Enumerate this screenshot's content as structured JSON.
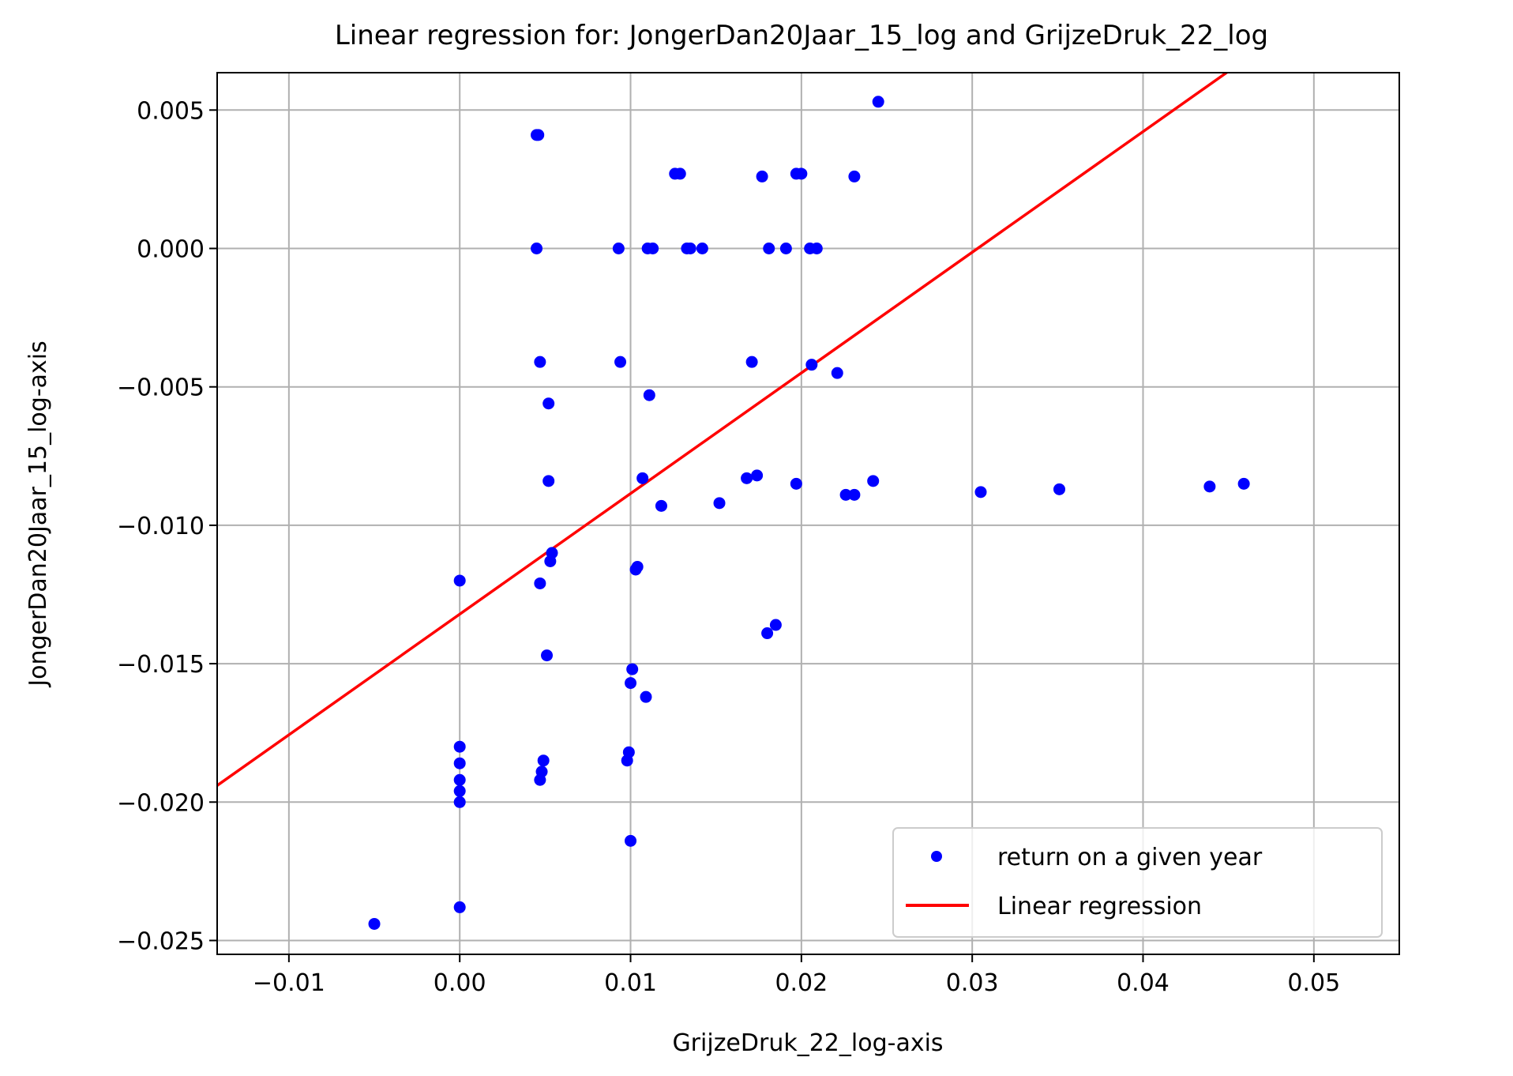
{
  "chart_data": {
    "type": "scatter",
    "title": "Linear regression for: JongerDan20Jaar_15_log and GrijzeDruk_22_log",
    "xlabel": "GrijzeDruk_22_log-axis",
    "ylabel": "JongerDan20Jaar_15_log-axis",
    "xlim": [
      -0.0142,
      0.055
    ],
    "ylim": [
      -0.0255,
      0.00635
    ],
    "xticks": [
      -0.01,
      0.0,
      0.01,
      0.02,
      0.03,
      0.04,
      0.05
    ],
    "xtick_labels": [
      "−0.01",
      "0.00",
      "0.01",
      "0.02",
      "0.03",
      "0.04",
      "0.05"
    ],
    "yticks": [
      -0.025,
      -0.02,
      -0.015,
      -0.01,
      -0.005,
      0.0,
      0.005
    ],
    "ytick_labels": [
      "−0.025",
      "−0.020",
      "−0.015",
      "−0.010",
      "−0.005",
      "0.000",
      "0.005"
    ],
    "grid": true,
    "legend_position": "lower-right",
    "series": [
      {
        "name": "return on a given year",
        "kind": "scatter",
        "color": "#0000ff",
        "points": [
          [
            -0.005,
            -0.0244
          ],
          [
            0.0,
            -0.0238
          ],
          [
            0.0,
            -0.012
          ],
          [
            0.0,
            -0.018
          ],
          [
            0.0,
            -0.0186
          ],
          [
            0.0,
            -0.0192
          ],
          [
            0.0,
            -0.0196
          ],
          [
            0.0,
            -0.02
          ],
          [
            0.0045,
            0.0041
          ],
          [
            0.0046,
            0.0041
          ],
          [
            0.0045,
            0.0
          ],
          [
            0.0047,
            -0.0041
          ],
          [
            0.0047,
            -0.0121
          ],
          [
            0.0048,
            -0.0189
          ],
          [
            0.0047,
            -0.0192
          ],
          [
            0.0049,
            -0.0185
          ],
          [
            0.0051,
            -0.0147
          ],
          [
            0.0052,
            -0.0056
          ],
          [
            0.0052,
            -0.0084
          ],
          [
            0.0054,
            -0.011
          ],
          [
            0.0053,
            -0.0113
          ],
          [
            0.0093,
            0.0
          ],
          [
            0.0094,
            -0.0041
          ],
          [
            0.0098,
            -0.0185
          ],
          [
            0.0099,
            -0.0182
          ],
          [
            0.01,
            -0.0214
          ],
          [
            0.0101,
            -0.0152
          ],
          [
            0.01,
            -0.0157
          ],
          [
            0.0103,
            -0.0116
          ],
          [
            0.0104,
            -0.0115
          ],
          [
            0.0107,
            -0.0083
          ],
          [
            0.0109,
            -0.0162
          ],
          [
            0.011,
            0.0
          ],
          [
            0.0111,
            -0.0053
          ],
          [
            0.0113,
            0.0
          ],
          [
            0.0118,
            -0.0093
          ],
          [
            0.0126,
            0.0027
          ],
          [
            0.0129,
            0.0027
          ],
          [
            0.0133,
            0.0
          ],
          [
            0.0135,
            0.0
          ],
          [
            0.0142,
            0.0
          ],
          [
            0.0152,
            -0.0092
          ],
          [
            0.0168,
            -0.0083
          ],
          [
            0.0171,
            -0.0041
          ],
          [
            0.0174,
            -0.0082
          ],
          [
            0.0177,
            0.0026
          ],
          [
            0.018,
            -0.0139
          ],
          [
            0.0181,
            0.0
          ],
          [
            0.0185,
            -0.0136
          ],
          [
            0.0191,
            0.0
          ],
          [
            0.0197,
            0.0027
          ],
          [
            0.0197,
            -0.0085
          ],
          [
            0.02,
            0.0027
          ],
          [
            0.0205,
            0.0
          ],
          [
            0.0206,
            -0.0042
          ],
          [
            0.0209,
            0.0
          ],
          [
            0.0221,
            -0.0045
          ],
          [
            0.0226,
            -0.0089
          ],
          [
            0.0231,
            -0.0089
          ],
          [
            0.0231,
            0.0026
          ],
          [
            0.0242,
            -0.0084
          ],
          [
            0.0245,
            0.0053
          ],
          [
            0.0305,
            -0.0088
          ],
          [
            0.0351,
            -0.0087
          ],
          [
            0.0439,
            -0.0086
          ],
          [
            0.0459,
            -0.0085
          ]
        ]
      },
      {
        "name": "Linear regression",
        "kind": "line",
        "color": "#ff0000",
        "line": [
          [
            -0.0142,
            -0.0194
          ],
          [
            0.045,
            0.0064
          ]
        ]
      }
    ]
  }
}
